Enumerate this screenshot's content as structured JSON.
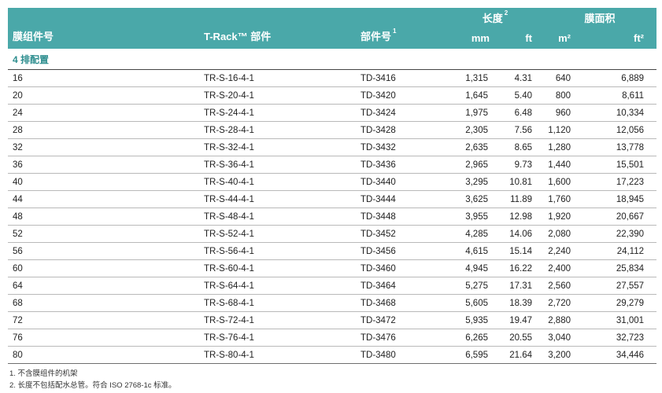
{
  "header": {
    "col_module_number": "膜组件号",
    "col_track_part": "T-Rack™ 部件",
    "col_part_number": "部件号",
    "col_part_number_note": "1",
    "col_length": "长度",
    "col_length_note": "2",
    "col_area": "膜面积",
    "unit_mm": "mm",
    "unit_ft": "ft",
    "unit_m2": "m²",
    "unit_ft2": "ft²"
  },
  "section_title": "4 排配置",
  "rows": [
    {
      "module": "16",
      "track": "TR-S-16-4-1",
      "part": "TD-3416",
      "mm": "1,315",
      "ft": "4.31",
      "m2": "640",
      "ft2": "6,889"
    },
    {
      "module": "20",
      "track": "TR-S-20-4-1",
      "part": "TD-3420",
      "mm": "1,645",
      "ft": "5.40",
      "m2": "800",
      "ft2": "8,611"
    },
    {
      "module": "24",
      "track": "TR-S-24-4-1",
      "part": "TD-3424",
      "mm": "1,975",
      "ft": "6.48",
      "m2": "960",
      "ft2": "10,334"
    },
    {
      "module": "28",
      "track": "TR-S-28-4-1",
      "part": "TD-3428",
      "mm": "2,305",
      "ft": "7.56",
      "m2": "1,120",
      "ft2": "12,056"
    },
    {
      "module": "32",
      "track": "TR-S-32-4-1",
      "part": "TD-3432",
      "mm": "2,635",
      "ft": "8.65",
      "m2": "1,280",
      "ft2": "13,778"
    },
    {
      "module": "36",
      "track": "TR-S-36-4-1",
      "part": "TD-3436",
      "mm": "2,965",
      "ft": "9.73",
      "m2": "1,440",
      "ft2": "15,501"
    },
    {
      "module": "40",
      "track": "TR-S-40-4-1",
      "part": "TD-3440",
      "mm": "3,295",
      "ft": "10.81",
      "m2": "1,600",
      "ft2": "17,223"
    },
    {
      "module": "44",
      "track": "TR-S-44-4-1",
      "part": "TD-3444",
      "mm": "3,625",
      "ft": "11.89",
      "m2": "1,760",
      "ft2": "18,945"
    },
    {
      "module": "48",
      "track": "TR-S-48-4-1",
      "part": "TD-3448",
      "mm": "3,955",
      "ft": "12.98",
      "m2": "1,920",
      "ft2": "20,667"
    },
    {
      "module": "52",
      "track": "TR-S-52-4-1",
      "part": "TD-3452",
      "mm": "4,285",
      "ft": "14.06",
      "m2": "2,080",
      "ft2": "22,390"
    },
    {
      "module": "56",
      "track": "TR-S-56-4-1",
      "part": "TD-3456",
      "mm": "4,615",
      "ft": "15.14",
      "m2": "2,240",
      "ft2": "24,112"
    },
    {
      "module": "60",
      "track": "TR-S-60-4-1",
      "part": "TD-3460",
      "mm": "4,945",
      "ft": "16.22",
      "m2": "2,400",
      "ft2": "25,834"
    },
    {
      "module": "64",
      "track": "TR-S-64-4-1",
      "part": "TD-3464",
      "mm": "5,275",
      "ft": "17.31",
      "m2": "2,560",
      "ft2": "27,557"
    },
    {
      "module": "68",
      "track": "TR-S-68-4-1",
      "part": "TD-3468",
      "mm": "5,605",
      "ft": "18.39",
      "m2": "2,720",
      "ft2": "29,279"
    },
    {
      "module": "72",
      "track": "TR-S-72-4-1",
      "part": "TD-3472",
      "mm": "5,935",
      "ft": "19.47",
      "m2": "2,880",
      "ft2": "31,001"
    },
    {
      "module": "76",
      "track": "TR-S-76-4-1",
      "part": "TD-3476",
      "mm": "6,265",
      "ft": "20.55",
      "m2": "3,040",
      "ft2": "32,723"
    },
    {
      "module": "80",
      "track": "TR-S-80-4-1",
      "part": "TD-3480",
      "mm": "6,595",
      "ft": "21.64",
      "m2": "3,200",
      "ft2": "34,446"
    }
  ],
  "notes": [
    "1. 不含膜组件的机架",
    "2. 长度不包括配水总管。符合 ISO 2768-1c 标准。"
  ],
  "colors": {
    "header_bg": "#4aa8a9",
    "section_text": "#2e8e8f"
  }
}
